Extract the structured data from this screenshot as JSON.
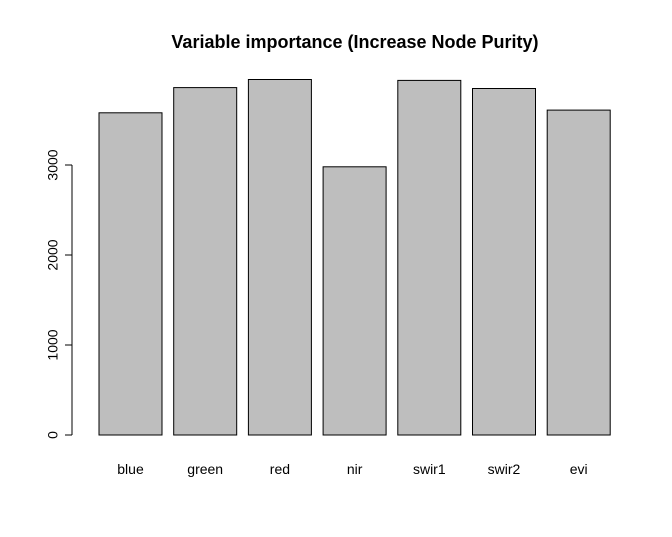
{
  "chart_data": {
    "type": "bar",
    "title": "Variable importance (Increase Node Purity)",
    "xlabel": "",
    "ylabel": "",
    "categories": [
      "blue",
      "green",
      "red",
      "nir",
      "swir1",
      "swir2",
      "evi"
    ],
    "values": [
      3580,
      3860,
      3950,
      2980,
      3940,
      3850,
      3610
    ],
    "ylim": [
      0,
      4000
    ],
    "yticks": [
      0,
      1000,
      2000,
      3000
    ],
    "ytick_labels": [
      "0",
      "1000",
      "2000",
      "3000"
    ],
    "grid": false,
    "legend": "none",
    "bar_color": "#bebebe",
    "bar_border_color": "#000000"
  }
}
